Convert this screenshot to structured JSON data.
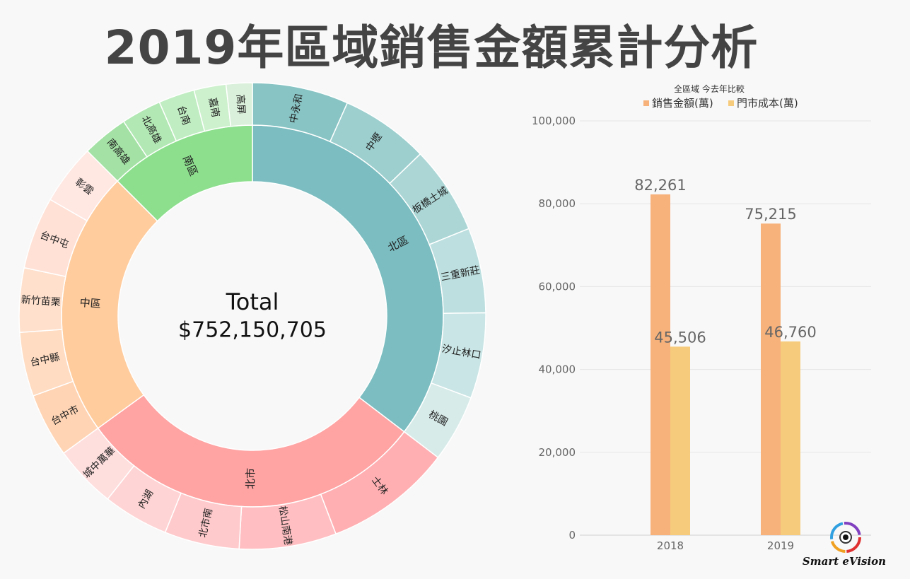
{
  "title": "2019年區域銷售金額累計分析",
  "center": {
    "label": "Total",
    "value": "$752,150,705"
  },
  "sunburst": {
    "inner": [
      {
        "name": "北區",
        "color": "#7bbdc0",
        "share": 0.3537
      },
      {
        "name": "北市",
        "color": "#ffa3a3",
        "share": 0.2963
      },
      {
        "name": "中區",
        "color": "#ffcc9e",
        "share": 0.225
      },
      {
        "name": "南區",
        "color": "#8ddf8e",
        "share": 0.125
      }
    ],
    "outer": [
      {
        "name": "中永和",
        "parent": 0,
        "share": 0.0667,
        "color": "#89c4c4"
      },
      {
        "name": "中壢",
        "parent": 0,
        "share": 0.0611,
        "color": "#9dcfcf"
      },
      {
        "name": "板橋土城",
        "parent": 0,
        "share": 0.0611,
        "color": "#acd6d6"
      },
      {
        "name": "三重新莊",
        "parent": 0,
        "share": 0.0589,
        "color": "#bddfdf"
      },
      {
        "name": "汐止林口",
        "parent": 0,
        "share": 0.0593,
        "color": "#cae5e5"
      },
      {
        "name": "桃園",
        "parent": 0,
        "share": 0.0466,
        "color": "#d7ebe9"
      },
      {
        "name": "士林",
        "parent": 1,
        "share": 0.0881,
        "color": "#ffafb2"
      },
      {
        "name": "松山南港",
        "parent": 1,
        "share": 0.0673,
        "color": "#ffbfc2"
      },
      {
        "name": "北市南",
        "parent": 1,
        "share": 0.0519,
        "color": "#ffcacc"
      },
      {
        "name": "內湖",
        "parent": 1,
        "share": 0.0455,
        "color": "#ffd4d4"
      },
      {
        "name": "城中萬華",
        "parent": 1,
        "share": 0.0435,
        "color": "#ffdede"
      },
      {
        "name": "台中市",
        "parent": 2,
        "share": 0.0444,
        "color": "#ffd4b4"
      },
      {
        "name": "台中縣",
        "parent": 2,
        "share": 0.0444,
        "color": "#ffdcc2"
      },
      {
        "name": "新竹苗栗",
        "parent": 2,
        "share": 0.0444,
        "color": "#ffe0cc"
      },
      {
        "name": "台中屯",
        "parent": 2,
        "share": 0.05,
        "color": "#ffe1d6"
      },
      {
        "name": "彰雲",
        "parent": 2,
        "share": 0.0418,
        "color": "#ffe7e2"
      },
      {
        "name": "南高雄",
        "parent": 3,
        "share": 0.0319,
        "color": "#a3e2a4"
      },
      {
        "name": "北高雄",
        "parent": 3,
        "share": 0.0278,
        "color": "#b2e8b4"
      },
      {
        "name": "台南",
        "parent": 3,
        "share": 0.025,
        "color": "#c0eec2"
      },
      {
        "name": "嘉南",
        "parent": 3,
        "share": 0.0222,
        "color": "#cdf0cd"
      },
      {
        "name": "高屏",
        "parent": 3,
        "share": 0.0181,
        "color": "#daf0da"
      }
    ]
  },
  "chart_data": [
    {
      "type": "sunburst",
      "title": "",
      "total": "$752,150,705",
      "levels": [
        {
          "name": "北區",
          "share": 0.3537,
          "children": [
            {
              "name": "中永和",
              "share": 0.0667
            },
            {
              "name": "中壢",
              "share": 0.0611
            },
            {
              "name": "板橋土城",
              "share": 0.0611
            },
            {
              "name": "三重新莊",
              "share": 0.0589
            },
            {
              "name": "汐止林口",
              "share": 0.0593
            },
            {
              "name": "桃園",
              "share": 0.0466
            }
          ]
        },
        {
          "name": "北市",
          "share": 0.2963,
          "children": [
            {
              "name": "士林",
              "share": 0.0881
            },
            {
              "name": "松山南港",
              "share": 0.0673
            },
            {
              "name": "北市南",
              "share": 0.0519
            },
            {
              "name": "內湖",
              "share": 0.0455
            },
            {
              "name": "城中萬華",
              "share": 0.0435
            }
          ]
        },
        {
          "name": "中區",
          "share": 0.225,
          "children": [
            {
              "name": "台中市",
              "share": 0.0444
            },
            {
              "name": "台中縣",
              "share": 0.0444
            },
            {
              "name": "新竹苗栗",
              "share": 0.0444
            },
            {
              "name": "台中屯",
              "share": 0.05
            },
            {
              "name": "彰雲",
              "share": 0.0418
            }
          ]
        },
        {
          "name": "南區",
          "share": 0.125,
          "children": [
            {
              "name": "南高雄",
              "share": 0.0319
            },
            {
              "name": "北高雄",
              "share": 0.0278
            },
            {
              "name": "台南",
              "share": 0.025
            },
            {
              "name": "嘉南",
              "share": 0.0222
            },
            {
              "name": "高屏",
              "share": 0.0181
            }
          ]
        }
      ]
    },
    {
      "type": "bar",
      "title": "全區域 今去年比較",
      "categories": [
        "2018",
        "2019"
      ],
      "series": [
        {
          "name": "銷售金額(萬)",
          "values": [
            82261,
            75215
          ],
          "color": "#f7b27c"
        },
        {
          "name": "門市成本(萬)",
          "values": [
            45506,
            46760
          ],
          "color": "#f7cb7c"
        }
      ],
      "ylim": [
        0,
        100000
      ],
      "yticks": [
        0,
        20000,
        40000,
        60000,
        80000,
        100000
      ],
      "ytick_labels": [
        "0",
        "20,000",
        "40,000",
        "60,000",
        "80,000",
        "100,000"
      ],
      "data_labels": [
        [
          "82,261",
          "75,215"
        ],
        [
          "45,506",
          "46,760"
        ]
      ],
      "grid": true,
      "legend": "top"
    }
  ],
  "logo": {
    "text": "Smart eVision"
  }
}
